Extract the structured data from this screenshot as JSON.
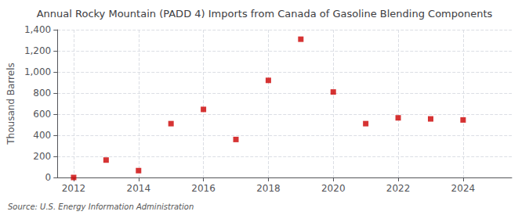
{
  "chart_data": {
    "type": "scatter",
    "title": "Annual Rocky Mountain (PADD 4) Imports from Canada of Gasoline Blending Components",
    "ylabel": "Thousand Barrels",
    "annotation": "Source: U.S. Energy Information Administration",
    "x": [
      2012,
      2013,
      2014,
      2015,
      2016,
      2017,
      2018,
      2019,
      2020,
      2021,
      2022,
      2023,
      2024
    ],
    "values": [
      0,
      165,
      65,
      510,
      645,
      360,
      920,
      1310,
      810,
      510,
      565,
      555,
      545
    ],
    "color": "#cc0000",
    "marker": "square",
    "xlim": [
      2011.5,
      2025.5
    ],
    "xticks": [
      2012,
      2014,
      2016,
      2018,
      2020,
      2022,
      2024
    ],
    "ylim": [
      0,
      1400
    ],
    "yticks": [
      0,
      200,
      400,
      600,
      800,
      {
        "value": 1000,
        "label": "1,000"
      },
      {
        "value": 1200,
        "label": "1,200"
      },
      {
        "value": 1400,
        "label": "1,400"
      }
    ],
    "grid": true
  }
}
